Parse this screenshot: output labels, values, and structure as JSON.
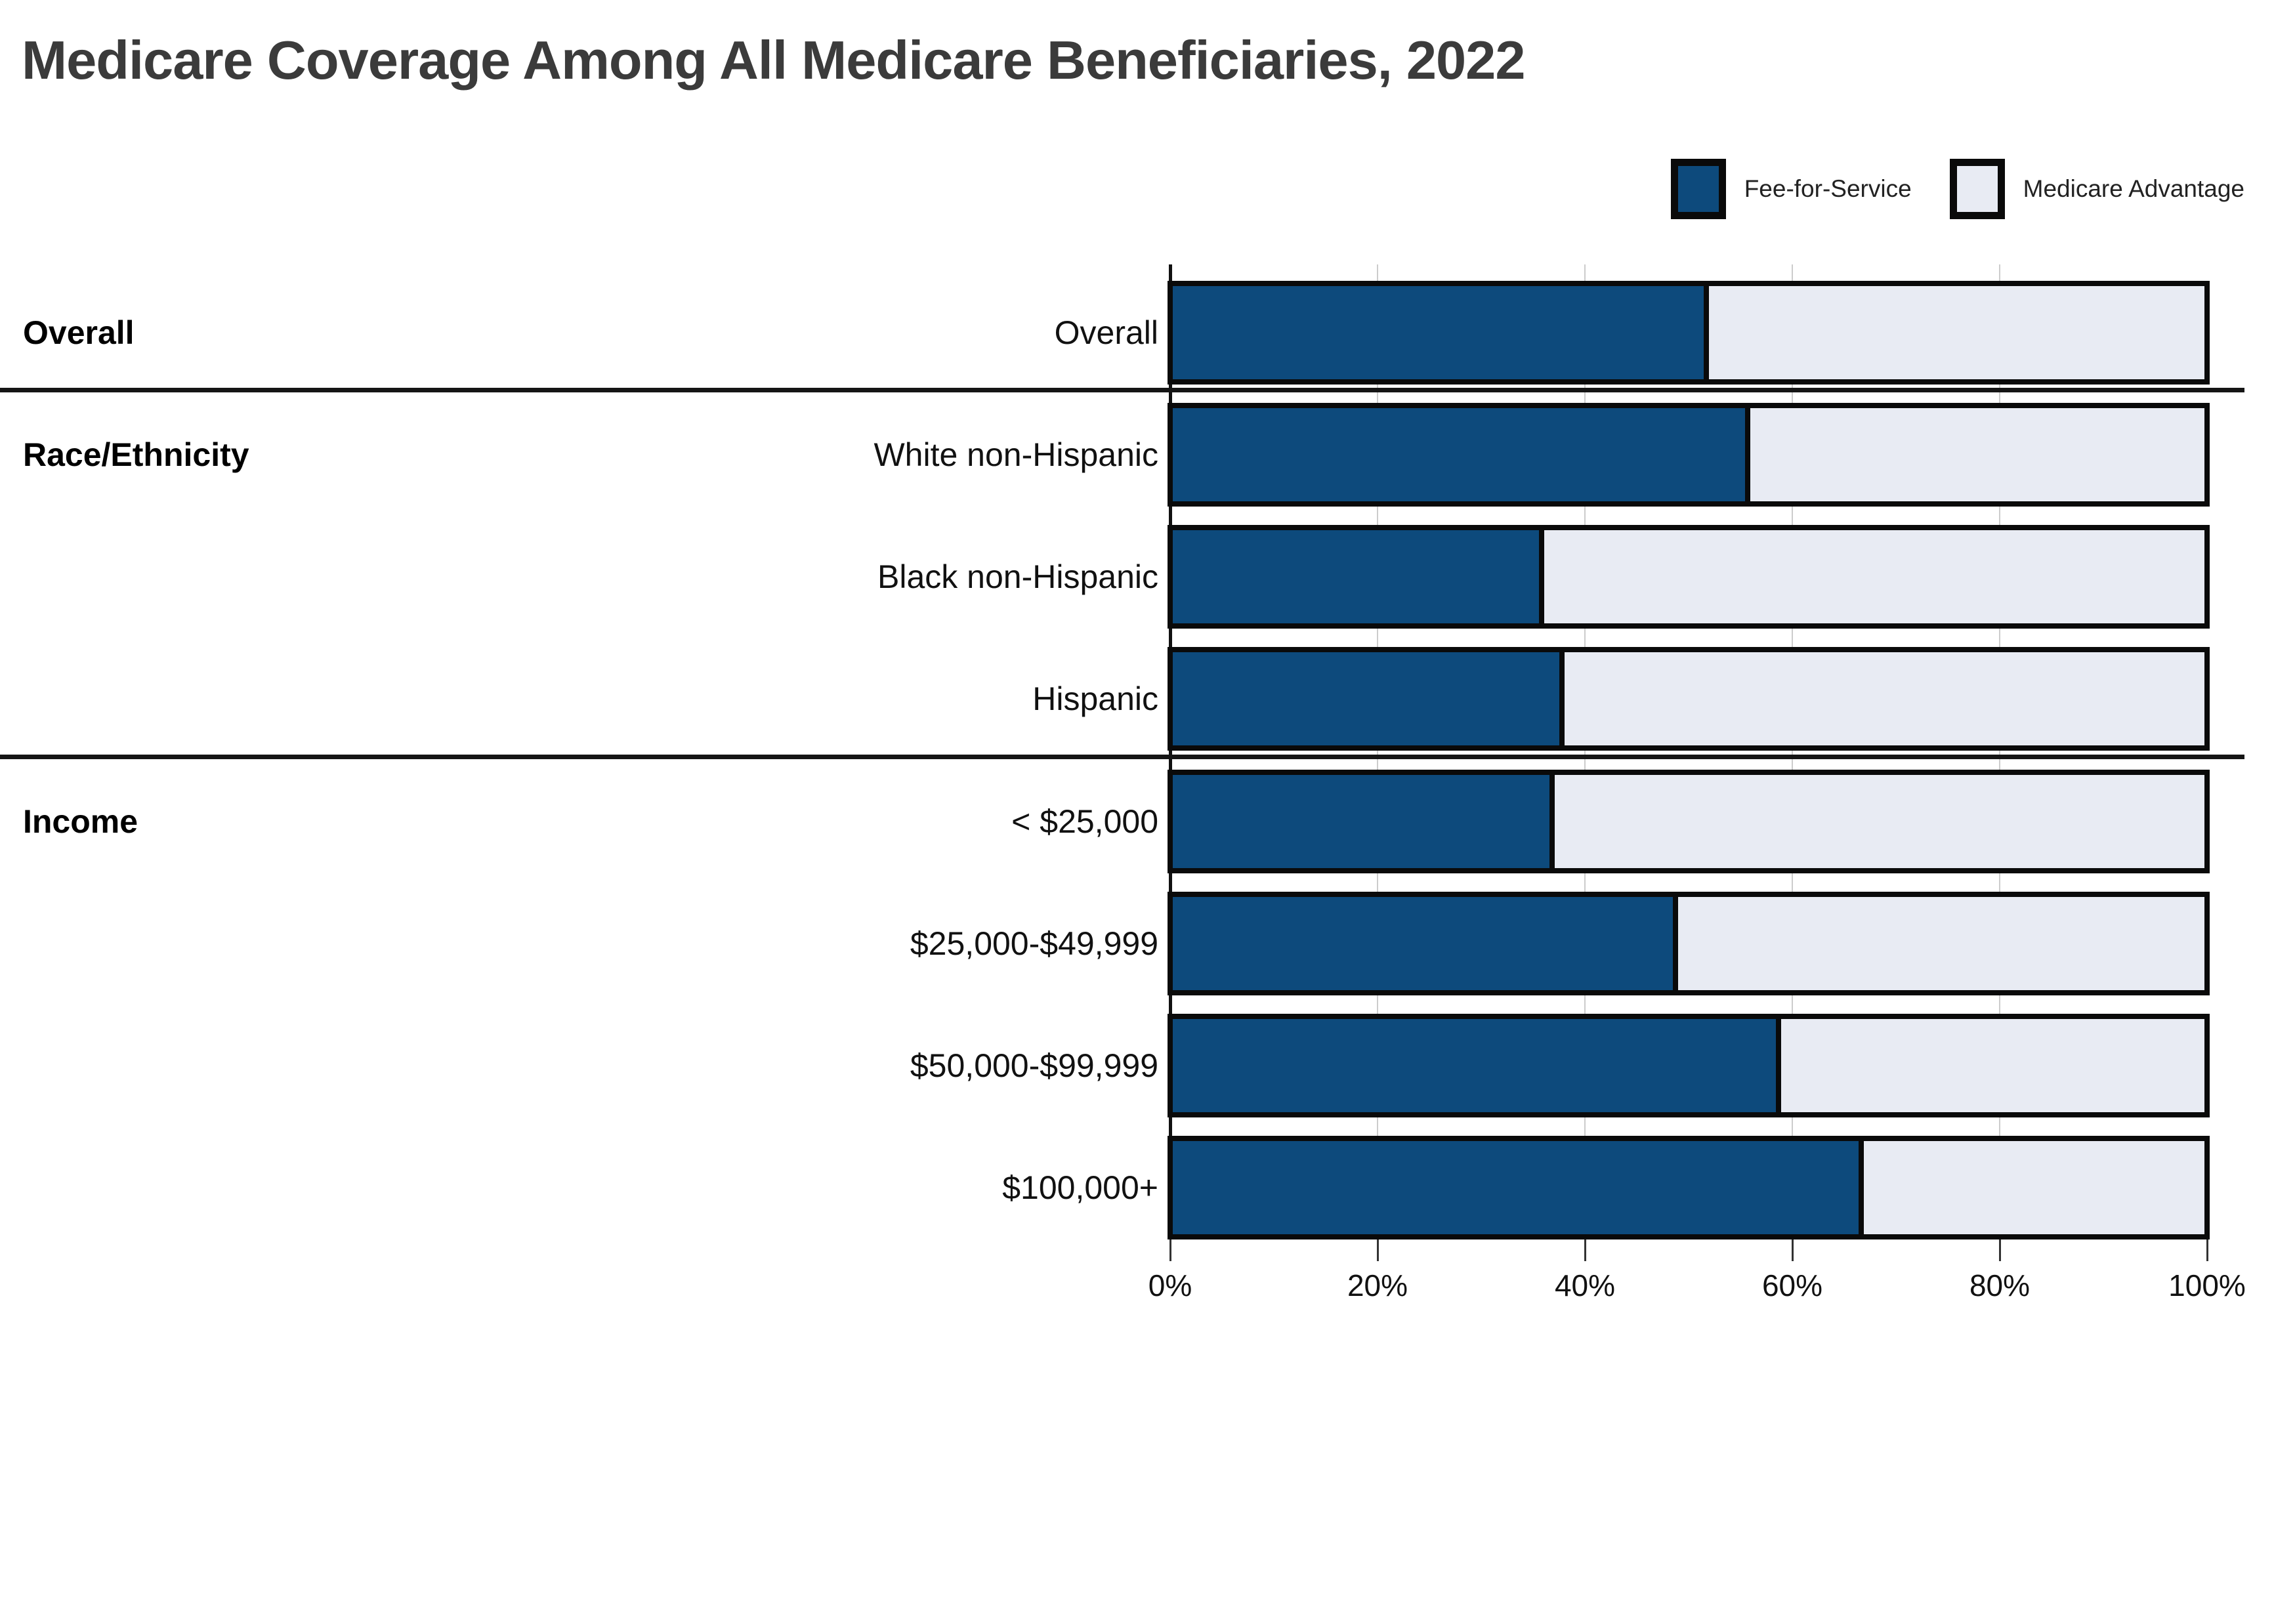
{
  "title": "Medicare Coverage Among All Medicare Beneficiaries, 2022",
  "legend": [
    {
      "label": "Fee-for-Service",
      "color": "#0d4a7c"
    },
    {
      "label": "Medicare Advantage",
      "color": "#e8ebf3"
    }
  ],
  "colors": {
    "ffs": "#0d4a7c",
    "ma": "#e8ebf3",
    "bar_border": "#0a0a0a",
    "gridline": "#cccccc",
    "axis": "#111111",
    "title_text": "#3b3b3b",
    "label_text": "#111111",
    "separator": "#151515"
  },
  "chart_data": {
    "type": "bar",
    "orientation": "horizontal",
    "stacked": true,
    "title": "Medicare Coverage Among All Medicare Beneficiaries, 2022",
    "units": "%",
    "categories": [
      "Overall",
      "White non-Hispanic",
      "Black non-Hispanic",
      "Hispanic",
      "< $25,000",
      "$25,000-$49,999",
      "$50,000-$99,999",
      "$100,000+"
    ],
    "groups": [
      {
        "label": "Overall",
        "start_row": 0,
        "row_count": 1
      },
      {
        "label": "Race/Ethnicity",
        "start_row": 1,
        "row_count": 3
      },
      {
        "label": "Income",
        "start_row": 4,
        "row_count": 4
      }
    ],
    "series": [
      {
        "name": "Fee-for-Service",
        "color": "#0d4a7c",
        "values": [
          52,
          56,
          36,
          38,
          37,
          49,
          59,
          67
        ]
      },
      {
        "name": "Medicare Advantage",
        "color": "#e8ebf3",
        "values": [
          48,
          44,
          64,
          62,
          63,
          51,
          41,
          33
        ]
      }
    ],
    "xlabel": "",
    "ylabel": "",
    "xlim": [
      0,
      100
    ],
    "x_tick_values": [
      0,
      20,
      40,
      60,
      80,
      100
    ],
    "x_tick_labels": [
      "0%",
      "20%",
      "40%",
      "60%",
      "80%",
      "100%"
    ],
    "grid": true,
    "legend_position": "top-right"
  }
}
